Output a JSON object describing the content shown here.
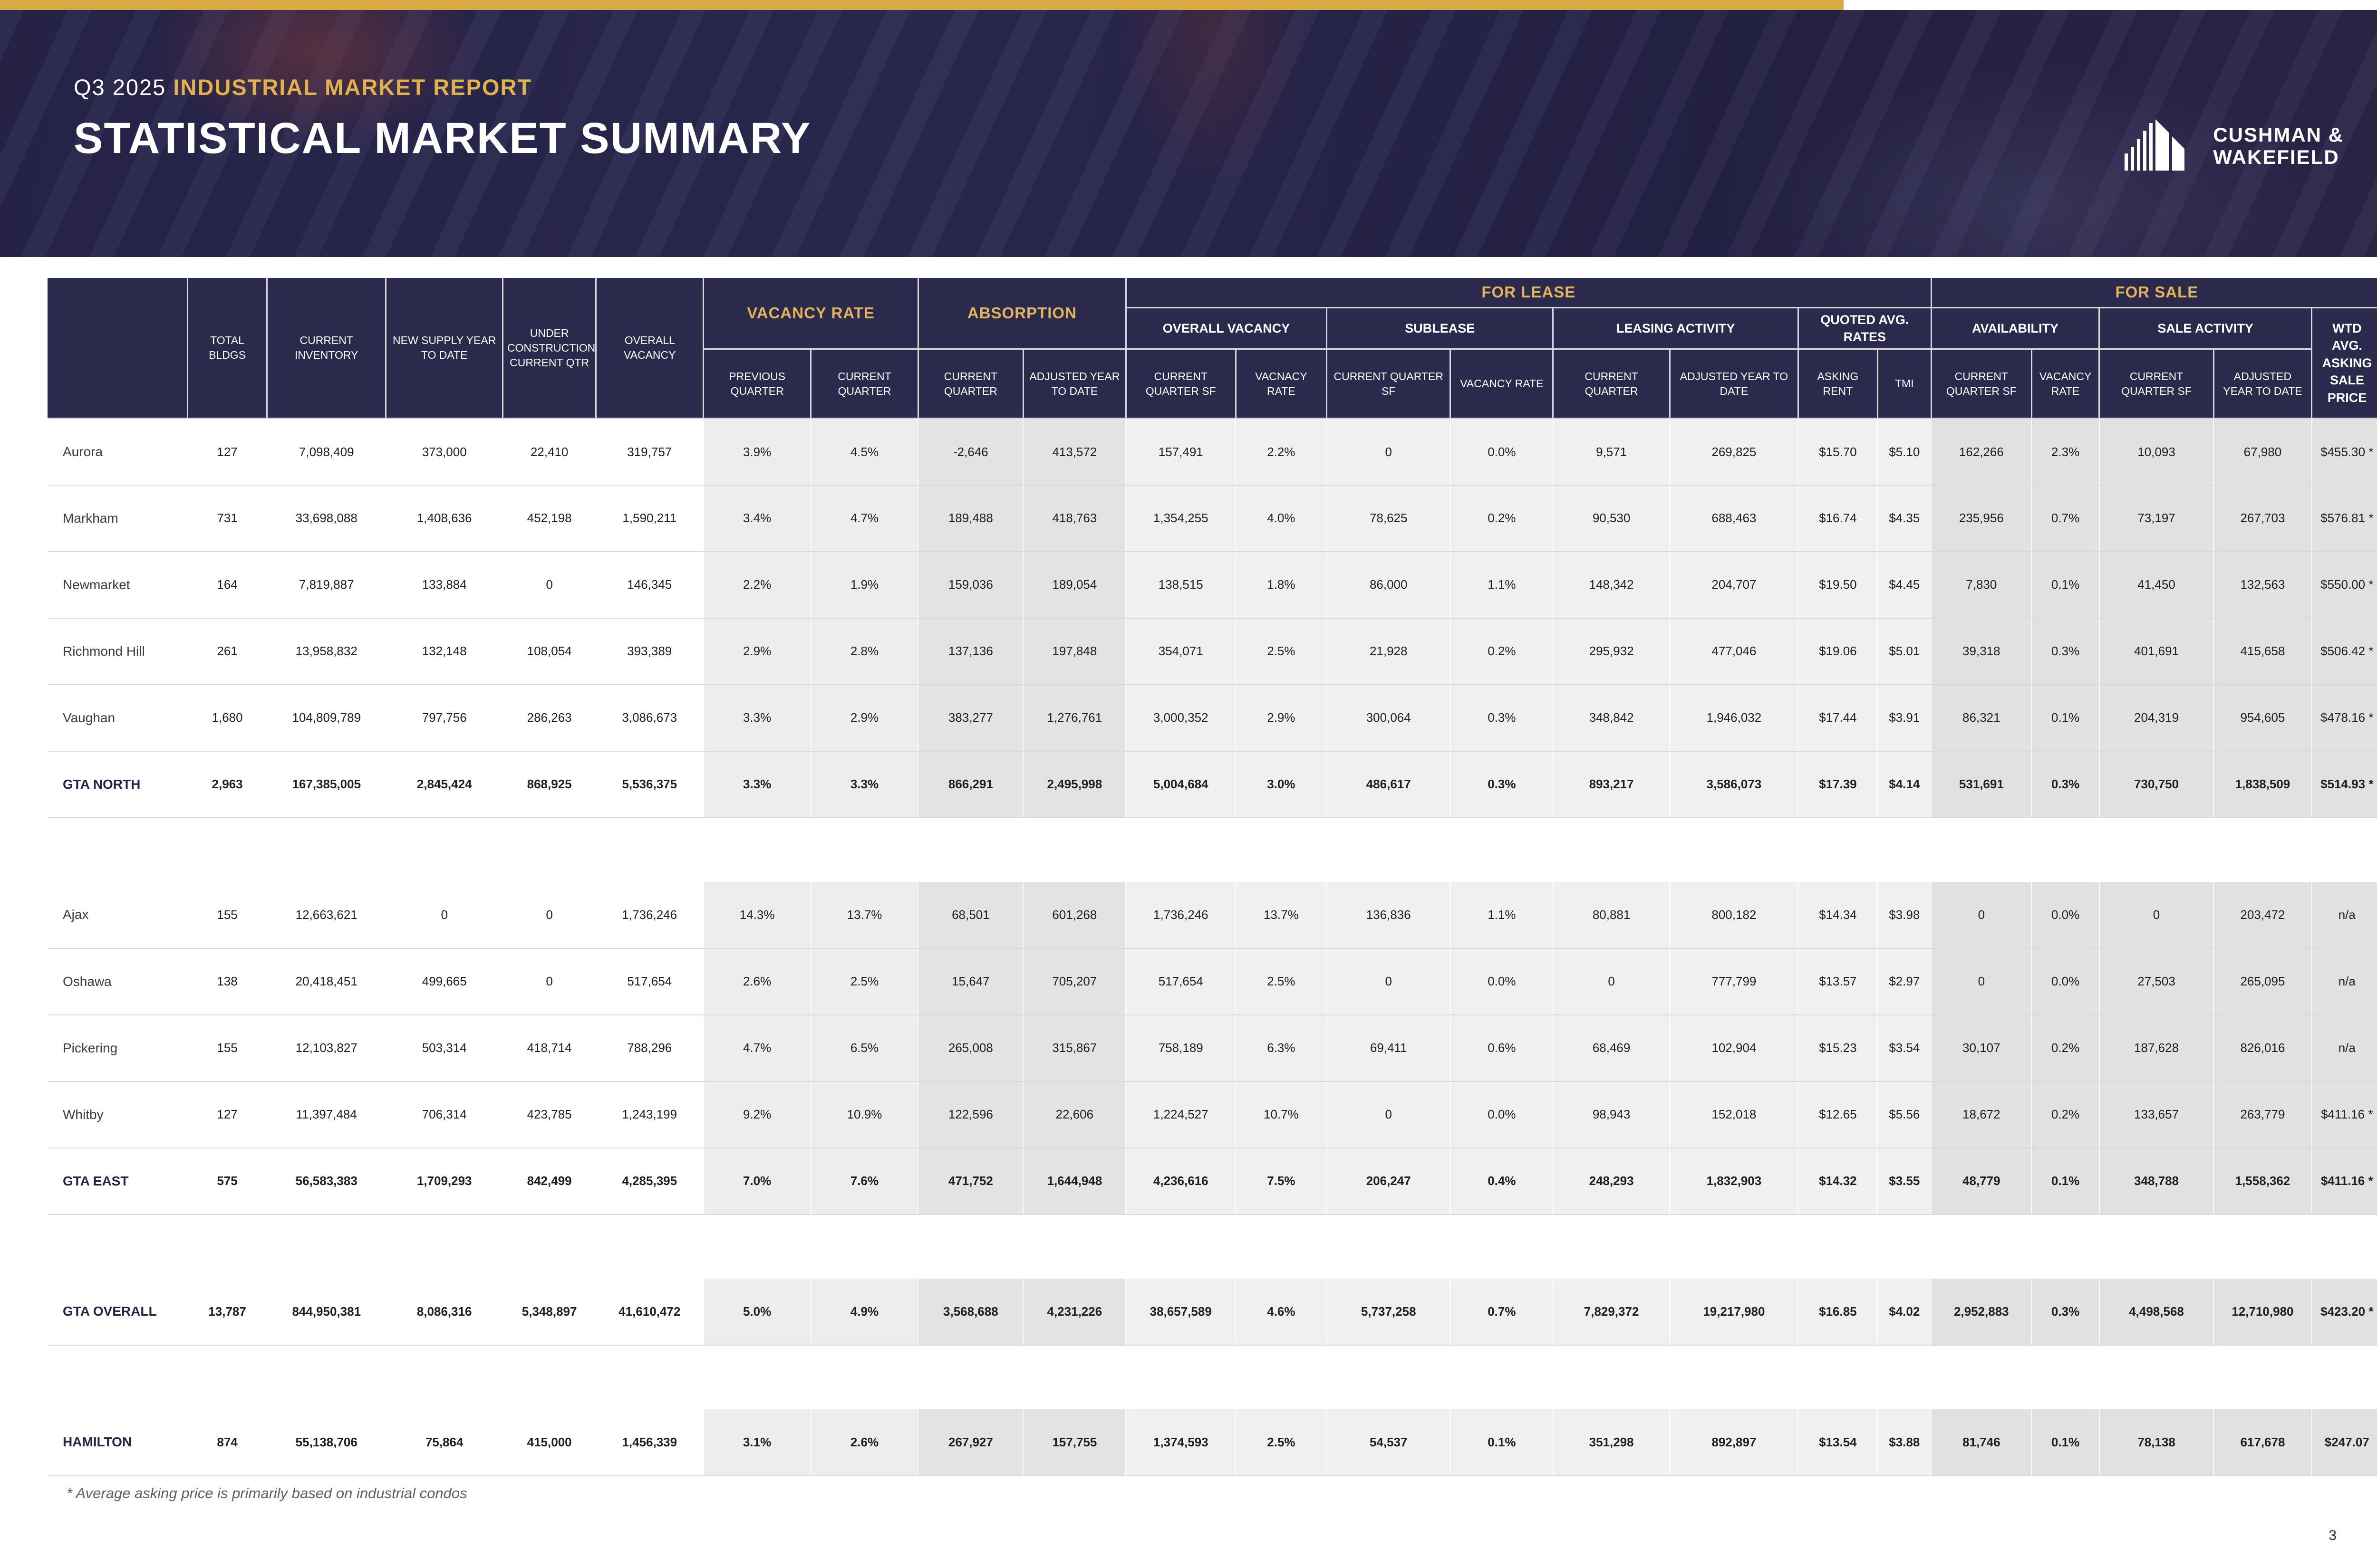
{
  "colors": {
    "gold": "#daab45",
    "navy": "#2b2a4d",
    "header_text_gold": "#e3b459"
  },
  "page": {
    "number": "3"
  },
  "header": {
    "pretitle_plain": "Q3 2025",
    "pretitle_accent": "INDUSTRIAL MARKET REPORT",
    "title": "STATISTICAL MARKET SUMMARY",
    "logo_line1": "CUSHMAN &",
    "logo_line2": "WAKEFIELD"
  },
  "table": {
    "top_headers": {
      "vacancy_rate": "VACANCY RATE",
      "absorption": "ABSORPTION",
      "for_lease": "FOR LEASE",
      "for_sale": "FOR SALE"
    },
    "col_headers": {
      "total_bldgs": "TOTAL BLDGS",
      "current_inventory": "CURRENT INVENTORY",
      "new_supply": "NEW SUPPLY YEAR TO DATE",
      "under_construction": "UNDER CONSTRUCTION CURRENT QTR",
      "overall_vacancy": "OVERALL VACANCY"
    },
    "groups": {
      "overall_vacancy": "OVERALL VACANCY",
      "sublease": "SUBLEASE",
      "leasing_activity": "LEASING ACTIVITY",
      "quoted_avg_rates": "QUOTED AVG. RATES",
      "availability": "AVAILABILITY",
      "sale_activity": "SALE ACTIVITY",
      "wtd_avg": "WTD AVG. ASKING SALE PRICE"
    },
    "leaf_headers": [
      "PREVIOUS QUARTER",
      "CURRENT QUARTER",
      "CURRENT QUARTER",
      "ADJUSTED YEAR TO DATE",
      "CURRENT QUARTER SF",
      "VACNACY RATE",
      "CURRENT QUARTER SF",
      "VACANCY RATE",
      "CURRENT QUARTER",
      "ADJUSTED YEAR TO DATE",
      "ASKING RENT",
      "TMI",
      "CURRENT QUARTER SF",
      "VACANCY RATE",
      "CURRENT QUARTER SF",
      "ADJUSTED YEAR TO DATE"
    ],
    "sections": [
      {
        "rows": [
          {
            "label": "Aurora",
            "type": "normal",
            "values": [
              "127",
              "7,098,409",
              "373,000",
              "22,410",
              "319,757",
              "3.9%",
              "4.5%",
              "-2,646",
              "413,572",
              "157,491",
              "2.2%",
              "0",
              "0.0%",
              "9,571",
              "269,825",
              "$15.70",
              "$5.10",
              "162,266",
              "2.3%",
              "10,093",
              "67,980",
              "$455.30 *"
            ]
          },
          {
            "label": "Markham",
            "type": "normal",
            "values": [
              "731",
              "33,698,088",
              "1,408,636",
              "452,198",
              "1,590,211",
              "3.4%",
              "4.7%",
              "189,488",
              "418,763",
              "1,354,255",
              "4.0%",
              "78,625",
              "0.2%",
              "90,530",
              "688,463",
              "$16.74",
              "$4.35",
              "235,956",
              "0.7%",
              "73,197",
              "267,703",
              "$576.81 *"
            ]
          },
          {
            "label": "Newmarket",
            "type": "normal",
            "values": [
              "164",
              "7,819,887",
              "133,884",
              "0",
              "146,345",
              "2.2%",
              "1.9%",
              "159,036",
              "189,054",
              "138,515",
              "1.8%",
              "86,000",
              "1.1%",
              "148,342",
              "204,707",
              "$19.50",
              "$4.45",
              "7,830",
              "0.1%",
              "41,450",
              "132,563",
              "$550.00 *"
            ]
          },
          {
            "label": "Richmond Hill",
            "type": "normal",
            "values": [
              "261",
              "13,958,832",
              "132,148",
              "108,054",
              "393,389",
              "2.9%",
              "2.8%",
              "137,136",
              "197,848",
              "354,071",
              "2.5%",
              "21,928",
              "0.2%",
              "295,932",
              "477,046",
              "$19.06",
              "$5.01",
              "39,318",
              "0.3%",
              "401,691",
              "415,658",
              "$506.42 *"
            ]
          },
          {
            "label": "Vaughan",
            "type": "normal",
            "values": [
              "1,680",
              "104,809,789",
              "797,756",
              "286,263",
              "3,086,673",
              "3.3%",
              "2.9%",
              "383,277",
              "1,276,761",
              "3,000,352",
              "2.9%",
              "300,064",
              "0.3%",
              "348,842",
              "1,946,032",
              "$17.44",
              "$3.91",
              "86,321",
              "0.1%",
              "204,319",
              "954,605",
              "$478.16 *"
            ]
          },
          {
            "label": "GTA NORTH",
            "type": "total",
            "values": [
              "2,963",
              "167,385,005",
              "2,845,424",
              "868,925",
              "5,536,375",
              "3.3%",
              "3.3%",
              "866,291",
              "2,495,998",
              "5,004,684",
              "3.0%",
              "486,617",
              "0.3%",
              "893,217",
              "3,586,073",
              "$17.39",
              "$4.14",
              "531,691",
              "0.3%",
              "730,750",
              "1,838,509",
              "$514.93 *"
            ]
          }
        ]
      },
      {
        "rows": [
          {
            "label": "Ajax",
            "type": "normal",
            "values": [
              "155",
              "12,663,621",
              "0",
              "0",
              "1,736,246",
              "14.3%",
              "13.7%",
              "68,501",
              "601,268",
              "1,736,246",
              "13.7%",
              "136,836",
              "1.1%",
              "80,881",
              "800,182",
              "$14.34",
              "$3.98",
              "0",
              "0.0%",
              "0",
              "203,472",
              "n/a"
            ]
          },
          {
            "label": "Oshawa",
            "type": "normal",
            "values": [
              "138",
              "20,418,451",
              "499,665",
              "0",
              "517,654",
              "2.6%",
              "2.5%",
              "15,647",
              "705,207",
              "517,654",
              "2.5%",
              "0",
              "0.0%",
              "0",
              "777,799",
              "$13.57",
              "$2.97",
              "0",
              "0.0%",
              "27,503",
              "265,095",
              "n/a"
            ]
          },
          {
            "label": "Pickering",
            "type": "normal",
            "values": [
              "155",
              "12,103,827",
              "503,314",
              "418,714",
              "788,296",
              "4.7%",
              "6.5%",
              "265,008",
              "315,867",
              "758,189",
              "6.3%",
              "69,411",
              "0.6%",
              "68,469",
              "102,904",
              "$15.23",
              "$3.54",
              "30,107",
              "0.2%",
              "187,628",
              "826,016",
              "n/a"
            ]
          },
          {
            "label": "Whitby",
            "type": "normal",
            "values": [
              "127",
              "11,397,484",
              "706,314",
              "423,785",
              "1,243,199",
              "9.2%",
              "10.9%",
              "122,596",
              "22,606",
              "1,224,527",
              "10.7%",
              "0",
              "0.0%",
              "98,943",
              "152,018",
              "$12.65",
              "$5.56",
              "18,672",
              "0.2%",
              "133,657",
              "263,779",
              "$411.16 *"
            ]
          },
          {
            "label": "GTA EAST",
            "type": "total",
            "values": [
              "575",
              "56,583,383",
              "1,709,293",
              "842,499",
              "4,285,395",
              "7.0%",
              "7.6%",
              "471,752",
              "1,644,948",
              "4,236,616",
              "7.5%",
              "206,247",
              "0.4%",
              "248,293",
              "1,832,903",
              "$14.32",
              "$3.55",
              "48,779",
              "0.1%",
              "348,788",
              "1,558,362",
              "$411.16 *"
            ]
          }
        ]
      },
      {
        "rows": [
          {
            "label": "GTA OVERALL",
            "type": "total",
            "values": [
              "13,787",
              "844,950,381",
              "8,086,316",
              "5,348,897",
              "41,610,472",
              "5.0%",
              "4.9%",
              "3,568,688",
              "4,231,226",
              "38,657,589",
              "4.6%",
              "5,737,258",
              "0.7%",
              "7,829,372",
              "19,217,980",
              "$16.85",
              "$4.02",
              "2,952,883",
              "0.3%",
              "4,498,568",
              "12,710,980",
              "$423.20 *"
            ]
          }
        ]
      },
      {
        "rows": [
          {
            "label": "HAMILTON",
            "type": "total",
            "values": [
              "874",
              "55,138,706",
              "75,864",
              "415,000",
              "1,456,339",
              "3.1%",
              "2.6%",
              "267,927",
              "157,755",
              "1,374,593",
              "2.5%",
              "54,537",
              "0.1%",
              "351,298",
              "892,897",
              "$13.54",
              "$3.88",
              "81,746",
              "0.1%",
              "78,138",
              "617,678",
              "$247.07"
            ]
          }
        ]
      }
    ]
  },
  "footnote": "* Average asking price is primarily based on industrial condos"
}
